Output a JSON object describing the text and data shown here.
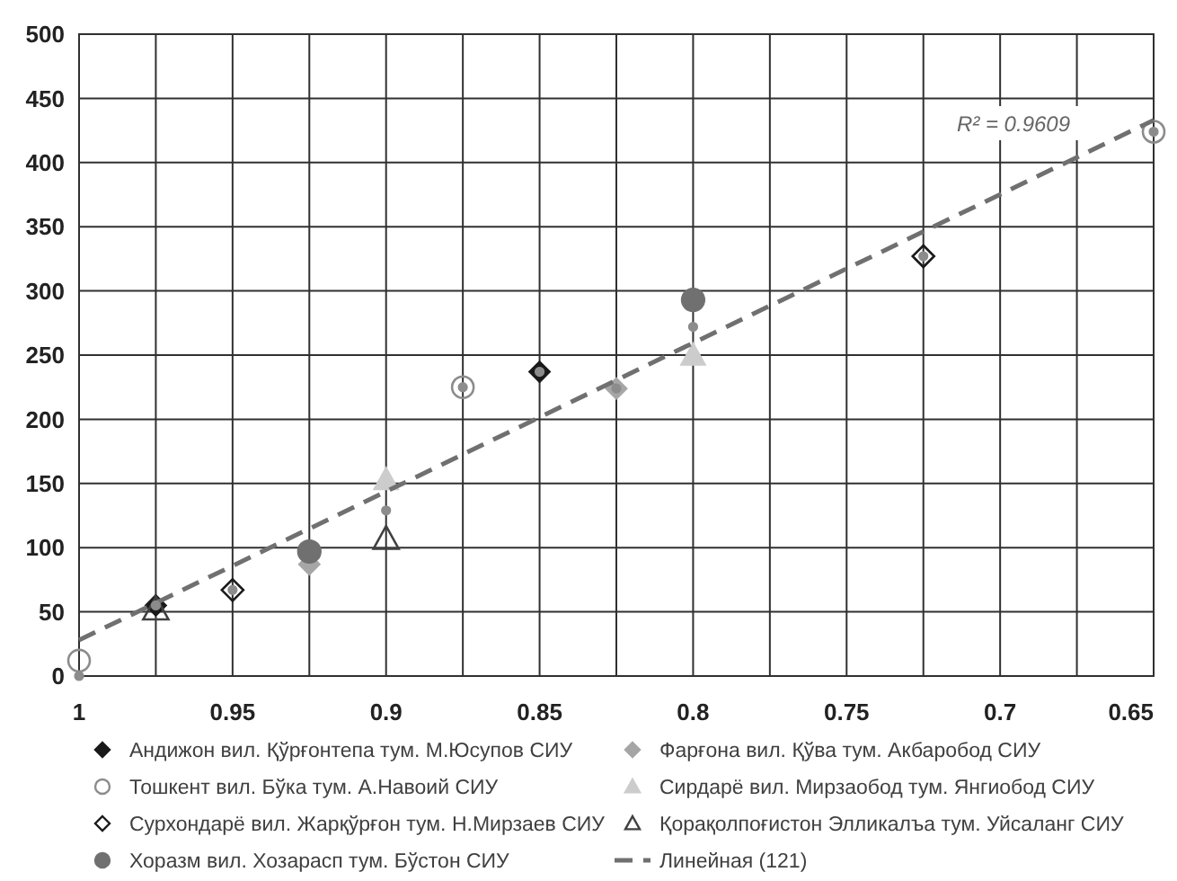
{
  "chart_data": {
    "type": "scatter",
    "xlim": [
      1,
      0.65
    ],
    "ylim": [
      0,
      500
    ],
    "xticks": [
      1,
      {
        "value": 0.975,
        "label": null
      },
      0.95,
      {
        "value": 0.925,
        "label": null
      },
      0.9,
      {
        "value": 0.875,
        "label": null
      },
      0.85,
      {
        "value": 0.825,
        "label": null
      },
      0.8,
      {
        "value": 0.775,
        "label": null
      },
      0.75,
      {
        "value": 0.725,
        "label": null
      },
      0.7,
      {
        "value": 0.675,
        "label": null
      },
      0.65
    ],
    "yticks": [
      0,
      50,
      100,
      150,
      200,
      250,
      300,
      350,
      400,
      450,
      500
    ],
    "grid": true,
    "legend": "bottom",
    "annotations": [
      "R² = 0.9609"
    ],
    "series": [
      {
        "name": "Андижон вил. Қўрғонтепа тум. М.Юсупов СИУ",
        "color": "#1a1a1a",
        "marker": "diamond",
        "x": [
          0.975,
          0.85
        ],
        "values": [
          55,
          237
        ]
      },
      {
        "name": "Фарғона вил. Қўва тум. Акбаробод СИУ",
        "color": "#a6a6a6",
        "marker": "diamond",
        "x": [
          0.925,
          0.825
        ],
        "values": [
          87,
          224
        ]
      },
      {
        "name": "Тошкент вил. Бўка тум. А.Навоий СИУ",
        "color": "#8c8c8c",
        "marker": "circle",
        "x": [
          1,
          0.875,
          0.65
        ],
        "values": [
          12,
          225,
          424
        ]
      },
      {
        "name": "Сирдарё вил. Мирзаобод тум. Янгиобод СИУ",
        "color": "#cccccc",
        "marker": "triangle",
        "x": [
          0.9,
          0.8
        ],
        "values": [
          153,
          250
        ]
      },
      {
        "name": "Сурхондарё вил. Жарқўрғон тум. Н.Мирзаев СИУ",
        "color": "#1a1a1a",
        "marker": "diamond",
        "x": [
          0.95,
          0.725
        ],
        "values": [
          67,
          327
        ]
      },
      {
        "name": "Қорақолпоғистон Элликалъа тум. Уйсаланг СИУ",
        "color": "#404040",
        "marker": "triangle",
        "x": [
          0.975,
          0.9
        ],
        "values": [
          52,
          107
        ]
      },
      {
        "name": "Хоразм вил. Хозарасп тум. Бўстон СИУ",
        "color": "#707070",
        "marker": "circle",
        "x": [
          0.925,
          0.8
        ],
        "values": [
          97,
          293
        ]
      },
      {
        "name": "Линейная (121)",
        "type": "line",
        "line_style": "dashed",
        "color": "#707070",
        "x": [
          1,
          0.65
        ],
        "values": [
          28,
          433
        ]
      },
      {
        "name": null,
        "color": "#8c8c8c",
        "marker": "circle",
        "x": [
          1,
          0.975,
          0.95,
          0.9,
          0.875,
          0.85,
          0.825,
          0.8,
          0.725,
          0.65
        ],
        "values": [
          0,
          55,
          67,
          129,
          225,
          237,
          224,
          272,
          327,
          424
        ]
      }
    ]
  }
}
